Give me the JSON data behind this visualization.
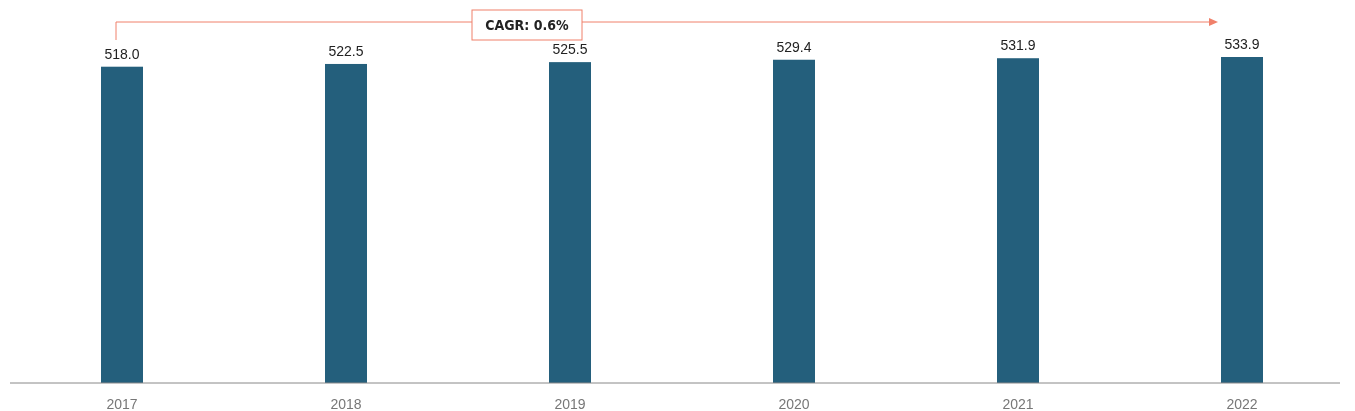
{
  "chart_data": {
    "type": "bar",
    "categories": [
      "2017",
      "2018",
      "2019",
      "2020",
      "2021",
      "2022"
    ],
    "values": [
      518.0,
      522.5,
      525.5,
      529.4,
      531.9,
      533.9
    ],
    "value_labels": [
      "518.0",
      "522.5",
      "525.5",
      "529.4",
      "531.9",
      "533.9"
    ],
    "color": "#245f7c",
    "annotations": [
      "CAGR: 0.6%"
    ]
  }
}
